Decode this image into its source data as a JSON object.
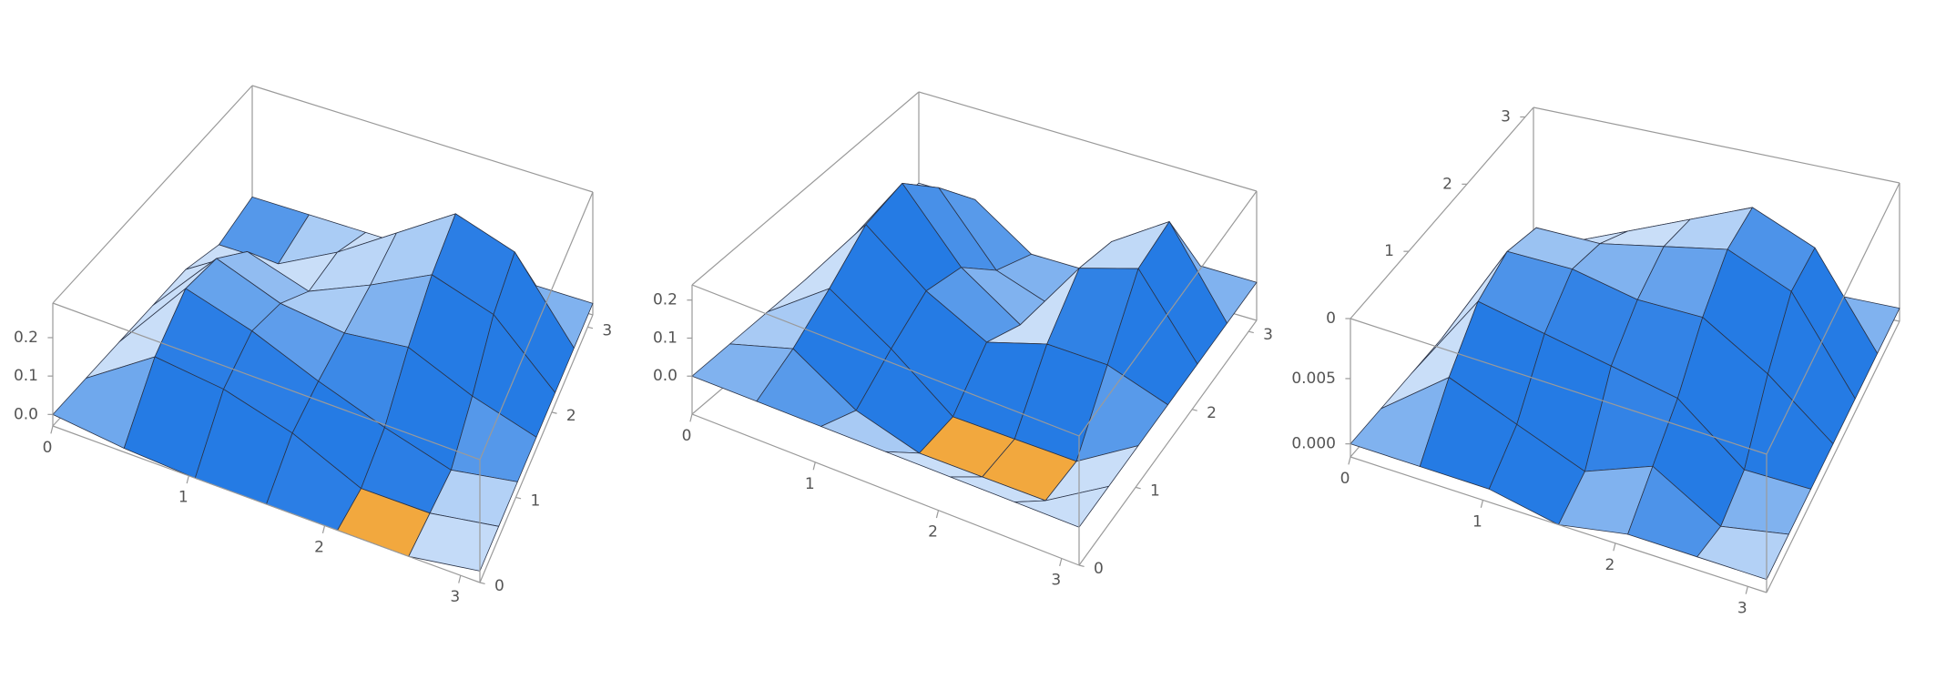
{
  "chart_data": [
    {
      "type": "surface3d",
      "color": "#6fa6ee",
      "clip_color": "#f2a83e",
      "ytick_edge": "bottom-right",
      "x": [
        0,
        0.524,
        1.047,
        1.571,
        2.094,
        2.618,
        3.142
      ],
      "y": [
        0,
        0.524,
        1.047,
        1.571,
        2.094,
        2.618,
        3.142
      ],
      "z": [
        [
          0,
          -0.02,
          -0.05,
          -0.05,
          -0.05,
          -0.05,
          0
        ],
        [
          0,
          0.12,
          0.1,
          0.05,
          -0.05,
          -0.08,
          0
        ],
        [
          0,
          0.2,
          0.15,
          0.08,
          0.02,
          -0.06,
          0
        ],
        [
          0,
          0.18,
          0.12,
          0.1,
          0.12,
          0.05,
          0
        ],
        [
          0,
          0.1,
          0.05,
          0.12,
          0.2,
          0.15,
          0
        ],
        [
          -0.06,
          -0.05,
          0.05,
          0.15,
          0.25,
          0.2,
          0
        ],
        [
          0,
          0,
          0,
          0,
          0,
          0,
          0
        ]
      ],
      "xlim": [
        0,
        3.142
      ],
      "ylim": [
        0,
        3.142
      ],
      "zlim": [
        -0.03,
        0.29
      ],
      "xticks": [
        0,
        1,
        2,
        3
      ],
      "yticks": [
        0,
        1,
        2,
        3
      ],
      "zticks": [
        {
          "value": 0,
          "label": "0.0"
        },
        0.1,
        0.2
      ]
    },
    {
      "type": "surface3d",
      "color": "#6fa6ee",
      "clip_color": "#f2a83e",
      "ytick_edge": "bottom-right",
      "x": [
        0,
        0.524,
        1.047,
        1.571,
        2.094,
        2.618,
        3.142
      ],
      "y": [
        0,
        0.524,
        1.047,
        1.571,
        2.094,
        2.618,
        3.142
      ],
      "z": [
        [
          0,
          0,
          0,
          0,
          0,
          0,
          0
        ],
        [
          0,
          0.05,
          -0.05,
          -0.12,
          -0.12,
          -0.12,
          0
        ],
        [
          0,
          0.12,
          0.02,
          -0.12,
          -0.15,
          -0.12,
          0
        ],
        [
          0,
          0.2,
          0.08,
          0,
          0.05,
          0.05,
          0
        ],
        [
          0,
          0.22,
          0.05,
          -0.05,
          0.15,
          0.2,
          0
        ],
        [
          0,
          0.12,
          -0.05,
          -0.12,
          0.12,
          0.22,
          0
        ],
        [
          0,
          0,
          -0.12,
          -0.12,
          0,
          0,
          0
        ]
      ],
      "xlim": [
        0,
        3.142
      ],
      "ylim": [
        0,
        3.142
      ],
      "zlim": [
        -0.1,
        0.24
      ],
      "xticks": [
        0,
        1,
        2,
        3
      ],
      "yticks": [
        0,
        1,
        2,
        3
      ],
      "zticks": [
        {
          "value": 0,
          "label": "0.0"
        },
        0.1,
        0.2
      ]
    },
    {
      "type": "surface3d",
      "color": "#6fa6ee",
      "clip_color": "#f2a83e",
      "ytick_edge": "top-left",
      "x": [
        0,
        0.524,
        1.047,
        1.571,
        2.094,
        2.618,
        3.142
      ],
      "y": [
        0,
        0.524,
        1.047,
        1.571,
        2.094,
        2.618,
        3.142
      ],
      "z": [
        [
          0,
          0,
          0,
          -0.002,
          0,
          0,
          0
        ],
        [
          0,
          0.004,
          0.002,
          0,
          0.002,
          -0.002,
          0
        ],
        [
          0,
          0.007,
          0.006,
          0.005,
          0.004,
          0,
          0
        ],
        [
          0,
          0.008,
          0.008,
          0.007,
          0.007,
          0.004,
          0
        ],
        [
          0,
          0.007,
          0.007,
          0.008,
          0.009,
          0.007,
          0
        ],
        [
          0,
          0.003,
          0.005,
          0.007,
          0.009,
          0.007,
          0
        ],
        [
          0,
          -0.002,
          0,
          0,
          0,
          0,
          0
        ]
      ],
      "xlim": [
        0,
        3.142
      ],
      "ylim": [
        0,
        3.142
      ],
      "zlim": [
        -0.001,
        0.0096
      ],
      "xticks": [
        0,
        1,
        2,
        3
      ],
      "yticks": [
        0,
        1,
        2,
        3
      ],
      "zticks": [
        {
          "value": 0,
          "label": "0.000"
        },
        0.005
      ]
    }
  ]
}
